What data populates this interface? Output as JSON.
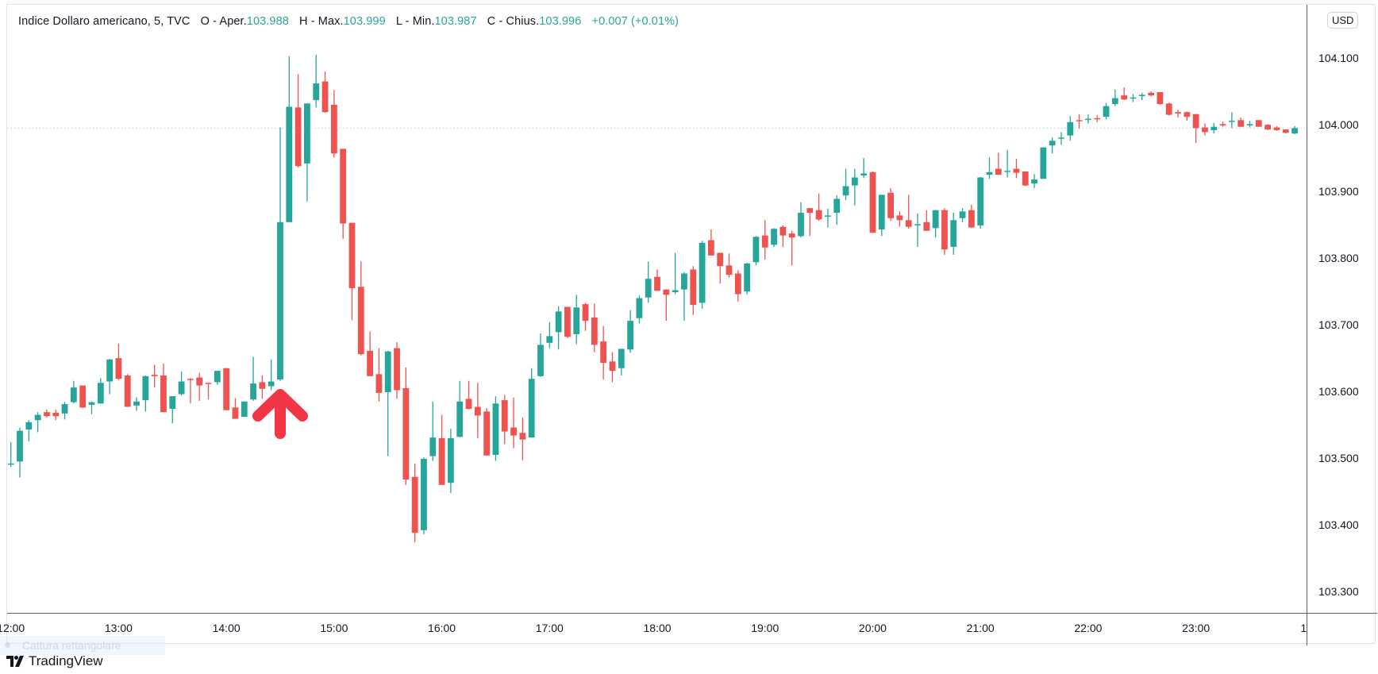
{
  "legend": {
    "symbol": "Indice Dollaro americano, 5, TVC",
    "open_label": "O - Aper.",
    "open": "103.988",
    "high_label": "H - Max.",
    "high": "103.999",
    "low_label": "L - Min.",
    "low": "103.987",
    "close_label": "C - Chius.",
    "close": "103.996",
    "change": "+0.007 (+0.01%)"
  },
  "currency_button": "USD",
  "tooltip": "Cattura rettangolare",
  "brand": "TradingView",
  "colors": {
    "up": "#26a69a",
    "down": "#ef5350",
    "arrow": "#f23645",
    "last_price_line": "#9fd8d2"
  },
  "chart_data": {
    "type": "candlestick",
    "title": "Indice Dollaro americano, 5, TVC",
    "interval_minutes": 5,
    "start_time": "12:00",
    "ylim": [
      103.269,
      104.181
    ],
    "y_ticks": [
      "104.100",
      "104.000",
      "103.900",
      "103.800",
      "103.700",
      "103.600",
      "103.500",
      "103.400",
      "103.300"
    ],
    "x_ticks": [
      {
        "label": "12:00",
        "index": 0
      },
      {
        "label": "13:00",
        "index": 12
      },
      {
        "label": "14:00",
        "index": 24
      },
      {
        "label": "15:00",
        "index": 36
      },
      {
        "label": "16:00",
        "index": 48
      },
      {
        "label": "17:00",
        "index": 60
      },
      {
        "label": "18:00",
        "index": 72
      },
      {
        "label": "19:00",
        "index": 84
      },
      {
        "label": "20:00",
        "index": 96
      },
      {
        "label": "21:00",
        "index": 108
      },
      {
        "label": "22:00",
        "index": 120
      },
      {
        "label": "23:00",
        "index": 132
      },
      {
        "label": "1",
        "index": 144
      }
    ],
    "last_price": 103.996,
    "annotation": {
      "type": "up-arrow",
      "candle_index": 30
    },
    "ohlc": [
      [
        103.492,
        103.525,
        103.488,
        103.493
      ],
      [
        103.496,
        103.547,
        103.472,
        103.542
      ],
      [
        103.544,
        103.558,
        103.526,
        103.555
      ],
      [
        103.558,
        103.57,
        103.54,
        103.566
      ],
      [
        103.57,
        103.574,
        103.562,
        103.564
      ],
      [
        103.569,
        103.574,
        103.558,
        103.564
      ],
      [
        103.568,
        103.585,
        103.559,
        103.582
      ],
      [
        103.585,
        103.617,
        103.583,
        103.607
      ],
      [
        103.61,
        103.61,
        103.576,
        103.577
      ],
      [
        103.581,
        103.586,
        103.567,
        103.585
      ],
      [
        103.583,
        103.621,
        103.583,
        103.614
      ],
      [
        103.616,
        103.65,
        103.597,
        103.649
      ],
      [
        103.651,
        103.673,
        103.618,
        103.62
      ],
      [
        103.625,
        103.627,
        103.578,
        103.578
      ],
      [
        103.58,
        103.592,
        103.572,
        103.586
      ],
      [
        103.588,
        103.625,
        103.571,
        103.624
      ],
      [
        103.626,
        103.641,
        103.607,
        103.624
      ],
      [
        103.625,
        103.643,
        103.57,
        103.57
      ],
      [
        103.575,
        103.594,
        103.553,
        103.594
      ],
      [
        103.597,
        103.631,
        103.595,
        103.616
      ],
      [
        103.62,
        103.621,
        103.583,
        103.619
      ],
      [
        103.622,
        103.629,
        103.587,
        103.61
      ],
      [
        103.614,
        103.614,
        103.589,
        103.613
      ],
      [
        103.615,
        103.632,
        103.611,
        103.632
      ],
      [
        103.636,
        103.636,
        103.573,
        103.573
      ],
      [
        103.577,
        103.591,
        103.56,
        103.56
      ],
      [
        103.563,
        103.586,
        103.563,
        103.586
      ],
      [
        103.589,
        103.653,
        103.587,
        103.613
      ],
      [
        103.615,
        103.625,
        103.59,
        103.605
      ],
      [
        103.609,
        103.649,
        103.603,
        103.616
      ],
      [
        103.619,
        103.997,
        103.617,
        103.855
      ],
      [
        103.855,
        104.104,
        103.855,
        104.028
      ],
      [
        104.027,
        104.077,
        103.937,
        103.939
      ],
      [
        103.943,
        104.033,
        103.886,
        104.033
      ],
      [
        104.038,
        104.106,
        104.027,
        104.063
      ],
      [
        104.066,
        104.081,
        104.019,
        104.02
      ],
      [
        104.031,
        104.053,
        103.952,
        103.958
      ],
      [
        103.965,
        103.965,
        103.83,
        103.853
      ],
      [
        103.854,
        103.854,
        103.708,
        103.756
      ],
      [
        103.758,
        103.796,
        103.655,
        103.657
      ],
      [
        103.662,
        103.691,
        103.624,
        103.624
      ],
      [
        103.627,
        103.666,
        103.586,
        103.599
      ],
      [
        103.6,
        103.662,
        103.504,
        103.661
      ],
      [
        103.666,
        103.675,
        103.59,
        103.603
      ],
      [
        103.606,
        103.637,
        103.461,
        103.469
      ],
      [
        103.473,
        103.493,
        103.375,
        103.389
      ],
      [
        103.393,
        103.502,
        103.387,
        103.5
      ],
      [
        103.504,
        103.586,
        103.497,
        103.532
      ],
      [
        103.531,
        103.566,
        103.461,
        103.461
      ],
      [
        103.464,
        103.545,
        103.449,
        103.531
      ],
      [
        103.533,
        103.617,
        103.532,
        103.586
      ],
      [
        103.59,
        103.617,
        103.574,
        103.575
      ],
      [
        103.578,
        103.614,
        103.531,
        103.565
      ],
      [
        103.571,
        103.576,
        103.505,
        103.505
      ],
      [
        103.506,
        103.594,
        103.497,
        103.583
      ],
      [
        103.588,
        103.596,
        103.522,
        103.541
      ],
      [
        103.547,
        103.592,
        103.516,
        103.535
      ],
      [
        103.539,
        103.562,
        103.498,
        103.529
      ],
      [
        103.532,
        103.636,
        103.532,
        103.62
      ],
      [
        103.624,
        103.688,
        103.623,
        103.671
      ],
      [
        103.674,
        103.705,
        103.666,
        103.684
      ],
      [
        103.69,
        103.729,
        103.664,
        103.721
      ],
      [
        103.728,
        103.728,
        103.681,
        103.683
      ],
      [
        103.687,
        103.746,
        103.672,
        103.727
      ],
      [
        103.732,
        103.734,
        103.692,
        103.707
      ],
      [
        103.712,
        103.733,
        103.66,
        103.671
      ],
      [
        103.676,
        103.699,
        103.619,
        103.644
      ],
      [
        103.646,
        103.66,
        103.615,
        103.632
      ],
      [
        103.636,
        103.665,
        103.625,
        103.665
      ],
      [
        103.664,
        103.723,
        103.659,
        103.707
      ],
      [
        103.711,
        103.745,
        103.703,
        103.741
      ],
      [
        103.742,
        103.796,
        103.734,
        103.77
      ],
      [
        103.773,
        103.784,
        103.752,
        103.752
      ],
      [
        103.754,
        103.754,
        103.707,
        103.746
      ],
      [
        103.75,
        103.809,
        103.747,
        103.753
      ],
      [
        103.754,
        103.78,
        103.707,
        103.778
      ],
      [
        103.784,
        103.789,
        103.716,
        103.731
      ],
      [
        103.734,
        103.827,
        103.725,
        103.824
      ],
      [
        103.828,
        103.844,
        103.805,
        103.805
      ],
      [
        103.809,
        103.809,
        103.763,
        103.789
      ],
      [
        103.79,
        103.808,
        103.772,
        103.776
      ],
      [
        103.778,
        103.783,
        103.736,
        103.747
      ],
      [
        103.751,
        103.794,
        103.747,
        103.793
      ],
      [
        103.795,
        103.834,
        103.79,
        103.833
      ],
      [
        103.835,
        103.858,
        103.799,
        103.817
      ],
      [
        103.821,
        103.846,
        103.818,
        103.845
      ],
      [
        103.848,
        103.85,
        103.818,
        103.835
      ],
      [
        103.838,
        103.842,
        103.79,
        103.832
      ],
      [
        103.834,
        103.885,
        103.832,
        103.869
      ],
      [
        103.876,
        103.876,
        103.834,
        103.869
      ],
      [
        103.873,
        103.898,
        103.857,
        103.859
      ],
      [
        103.864,
        103.875,
        103.847,
        103.865
      ],
      [
        103.869,
        103.895,
        103.851,
        103.89
      ],
      [
        103.895,
        103.935,
        103.888,
        103.909
      ],
      [
        103.91,
        103.935,
        103.88,
        103.922
      ],
      [
        103.925,
        103.951,
        103.921,
        103.928
      ],
      [
        103.93,
        103.931,
        103.839,
        103.839
      ],
      [
        103.844,
        103.896,
        103.834,
        103.896
      ],
      [
        103.899,
        103.906,
        103.857,
        103.861
      ],
      [
        103.865,
        103.871,
        103.848,
        103.858
      ],
      [
        103.858,
        103.896,
        103.845,
        103.848
      ],
      [
        103.851,
        103.868,
        103.818,
        103.852
      ],
      [
        103.855,
        103.873,
        103.842,
        103.842
      ],
      [
        103.846,
        103.873,
        103.832,
        103.873
      ],
      [
        103.873,
        103.876,
        103.806,
        103.814
      ],
      [
        103.818,
        103.869,
        103.806,
        103.858
      ],
      [
        103.861,
        103.876,
        103.855,
        103.871
      ],
      [
        103.873,
        103.881,
        103.846,
        103.847
      ],
      [
        103.85,
        103.923,
        103.845,
        103.922
      ],
      [
        103.926,
        103.952,
        103.92,
        103.93
      ],
      [
        103.935,
        103.959,
        103.926,
        103.926
      ],
      [
        103.931,
        103.963,
        103.922,
        103.932
      ],
      [
        103.935,
        103.95,
        103.921,
        103.929
      ],
      [
        103.931,
        103.931,
        103.909,
        103.91
      ],
      [
        103.913,
        103.927,
        103.906,
        103.919
      ],
      [
        103.92,
        103.967,
        103.92,
        103.967
      ],
      [
        103.97,
        103.982,
        103.958,
        103.977
      ],
      [
        103.981,
        103.99,
        103.971,
        103.982
      ],
      [
        103.985,
        104.014,
        103.977,
        104.005
      ],
      [
        104.008,
        104.017,
        103.995,
        104.007
      ],
      [
        104.009,
        104.017,
        104.003,
        104.01
      ],
      [
        104.011,
        104.015,
        104.005,
        104.01
      ],
      [
        104.013,
        104.034,
        104.009,
        104.029
      ],
      [
        104.032,
        104.054,
        104.029,
        104.041
      ],
      [
        104.045,
        104.057,
        104.038,
        104.039
      ],
      [
        104.041,
        104.047,
        104.035,
        104.042
      ],
      [
        104.044,
        104.049,
        104.038,
        104.046
      ],
      [
        104.049,
        104.051,
        104.044,
        104.045
      ],
      [
        104.05,
        104.05,
        104.031,
        104.032
      ],
      [
        104.033,
        104.034,
        104.015,
        104.016
      ],
      [
        104.02,
        104.024,
        104.012,
        104.018
      ],
      [
        104.02,
        104.021,
        104.007,
        104.013
      ],
      [
        104.017,
        104.017,
        103.974,
        103.996
      ],
      [
        103.997,
        104.003,
        103.985,
        103.99
      ],
      [
        103.993,
        104.004,
        103.988,
        103.998
      ],
      [
        104.002,
        104.006,
        103.998,
        104.0
      ],
      [
        104.006,
        104.02,
        103.996,
        104.007
      ],
      [
        104.008,
        104.012,
        103.998,
        103.998
      ],
      [
        104.0,
        104.007,
        103.997,
        104.002
      ],
      [
        104.008,
        104.008,
        103.998,
        103.998
      ],
      [
        104.001,
        104.002,
        103.993,
        103.994
      ],
      [
        103.997,
        103.999,
        103.992,
        103.993
      ],
      [
        103.994,
        103.994,
        103.988,
        103.989
      ],
      [
        103.988,
        103.999,
        103.987,
        103.996
      ]
    ]
  }
}
